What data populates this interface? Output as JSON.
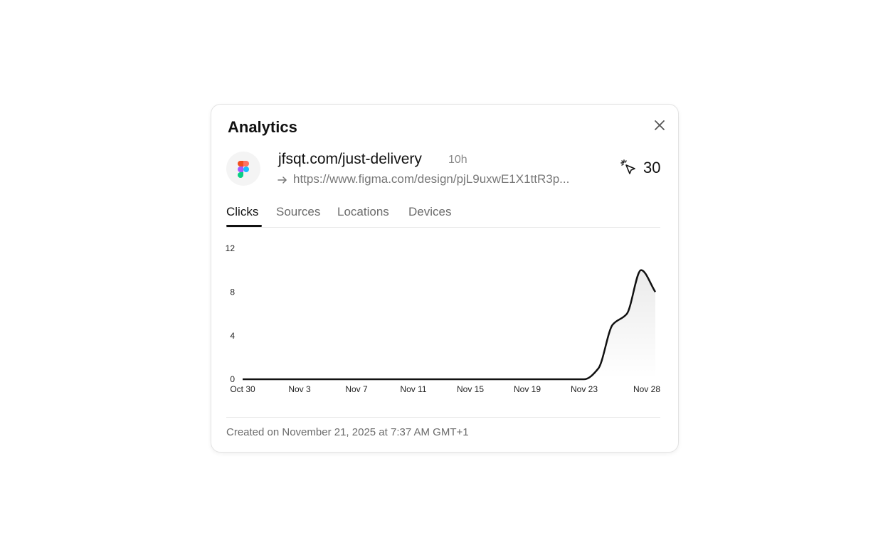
{
  "header": {
    "title": "Analytics"
  },
  "link": {
    "short_url": "jfsqt.com/just-delivery",
    "age": "10h",
    "destination": "https://www.figma.com/design/pjL9uxwE1X1ttR3p...",
    "clicks": 30
  },
  "tabs": [
    "Clicks",
    "Sources",
    "Locations",
    "Devices"
  ],
  "chart_data": {
    "type": "line",
    "categories": [
      "Oct 30",
      null,
      null,
      null,
      "Nov 3",
      null,
      null,
      null,
      "Nov 7",
      null,
      null,
      null,
      "Nov 11",
      null,
      null,
      null,
      "Nov 15",
      null,
      null,
      null,
      "Nov 19",
      null,
      null,
      null,
      "Nov 23",
      null,
      null,
      null,
      null,
      "Nov 28"
    ],
    "values": [
      0,
      0,
      0,
      0,
      0,
      0,
      0,
      0,
      0,
      0,
      0,
      0,
      0,
      0,
      0,
      0,
      0,
      0,
      0,
      0,
      0,
      0,
      0,
      0,
      0,
      1,
      5,
      6,
      10,
      8
    ],
    "color": "#111111",
    "ylim": [
      0,
      12
    ],
    "yticks": [
      0,
      4,
      8,
      12
    ]
  },
  "footer": "Created on November 21, 2025 at 7:37 AM GMT+1"
}
